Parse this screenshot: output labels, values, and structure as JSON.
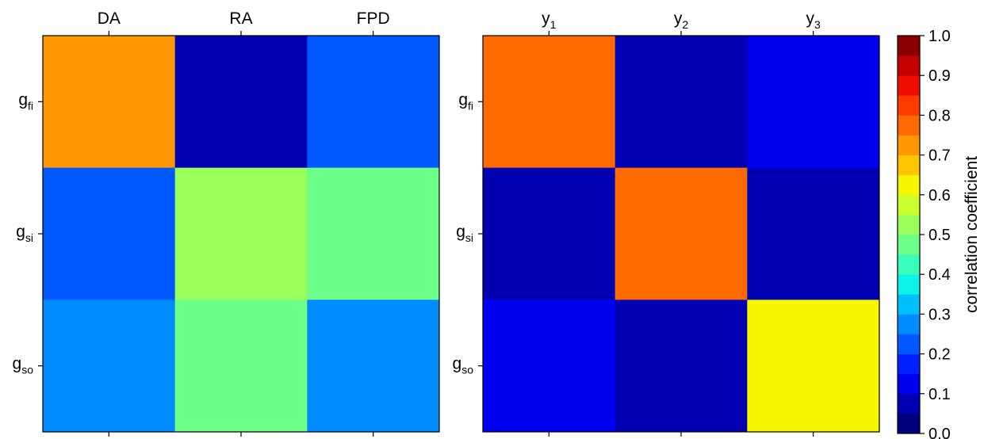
{
  "chart_data": [
    {
      "type": "heatmap",
      "x_categories": [
        "DA",
        "RA",
        "FPD"
      ],
      "y_categories": [
        {
          "base": "g",
          "sub": "fi"
        },
        {
          "base": "g",
          "sub": "si"
        },
        {
          "base": "g",
          "sub": "so"
        }
      ],
      "values": [
        [
          0.73,
          0.05,
          0.22
        ],
        [
          0.22,
          0.53,
          0.47
        ],
        [
          0.29,
          0.47,
          0.26
        ]
      ]
    },
    {
      "type": "heatmap",
      "x_categories": [
        {
          "base": "y",
          "sub": "1"
        },
        {
          "base": "y",
          "sub": "2"
        },
        {
          "base": "y",
          "sub": "3"
        }
      ],
      "y_categories": [
        {
          "base": "g",
          "sub": "fi"
        },
        {
          "base": "g",
          "sub": "si"
        },
        {
          "base": "g",
          "sub": "so"
        }
      ],
      "values": [
        [
          0.79,
          0.06,
          0.13
        ],
        [
          0.07,
          0.79,
          0.07
        ],
        [
          0.13,
          0.07,
          0.63
        ]
      ]
    }
  ],
  "colorbar": {
    "label": "correlation coefficient",
    "range": [
      0.0,
      1.0
    ],
    "bins": 20,
    "tick_labels": [
      "0.0",
      "0.1",
      "0.2",
      "0.3",
      "0.4",
      "0.5",
      "0.6",
      "0.7",
      "0.8",
      "0.9",
      "1.0"
    ],
    "colors": [
      "#00007f",
      "#0000b2",
      "#0000f0",
      "#0020ff",
      "#0058ff",
      "#008cff",
      "#00c0ff",
      "#0cf4ea",
      "#3affbc",
      "#6cff8a",
      "#9aff5c",
      "#caff2c",
      "#f8f500",
      "#ffc600",
      "#ff9800",
      "#ff6a00",
      "#ff3c00",
      "#f10c00",
      "#c50000",
      "#8a0000"
    ]
  }
}
